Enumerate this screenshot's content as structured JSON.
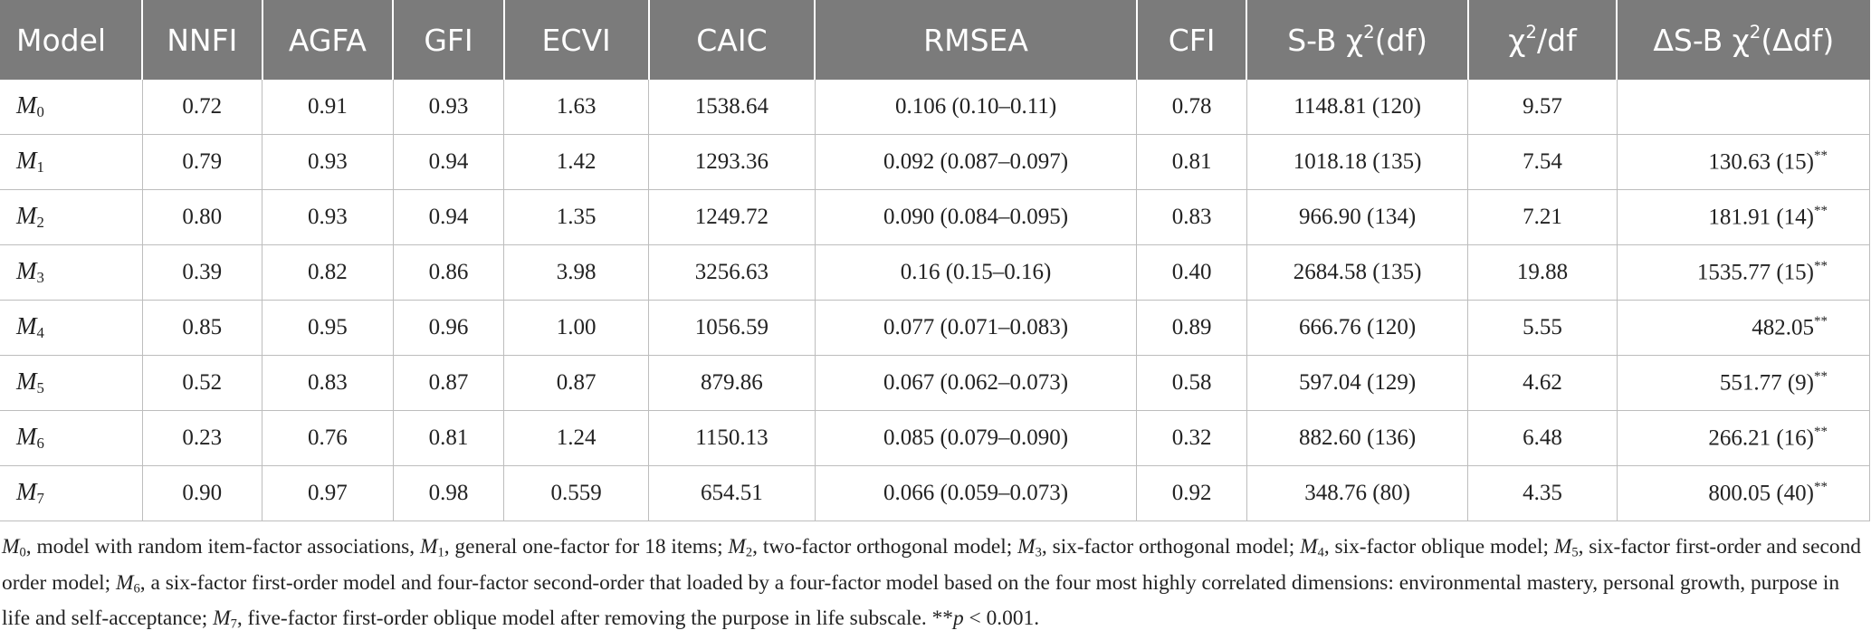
{
  "table": {
    "headers": [
      "Model",
      "NNFI",
      "AGFA",
      "GFI",
      "ECVI",
      "CAIC",
      "RMSEA",
      "CFI",
      "S-B χ",
      "χ",
      "ΔS-B χ"
    ],
    "header_sups": [
      "",
      "",
      "",
      "",
      "",
      "",
      "",
      "",
      "2",
      "2",
      ""
    ],
    "header_suffix": [
      "",
      "",
      "",
      "",
      "",
      "",
      "",
      "",
      "(df)",
      "/df",
      "(Δdf)"
    ],
    "rows": [
      {
        "model": "M",
        "sub": "0",
        "nnfi": "0.72",
        "agfa": "0.91",
        "gfi": "0.93",
        "ecvi": "1.63",
        "caic": "1538.64",
        "rmsea": "0.106 (0.10–0.11)",
        "cfi": "0.78",
        "sb": "1148.81 (120)",
        "chidf": "9.57",
        "dsb": "",
        "sig": ""
      },
      {
        "model": "M",
        "sub": "1",
        "nnfi": "0.79",
        "agfa": "0.93",
        "gfi": "0.94",
        "ecvi": "1.42",
        "caic": "1293.36",
        "rmsea": "0.092 (0.087–0.097)",
        "cfi": "0.81",
        "sb": "1018.18 (135)",
        "chidf": "7.54",
        "dsb": "130.63 (15)",
        "sig": "**"
      },
      {
        "model": "M",
        "sub": "2",
        "nnfi": "0.80",
        "agfa": "0.93",
        "gfi": "0.94",
        "ecvi": "1.35",
        "caic": "1249.72",
        "rmsea": "0.090 (0.084–0.095)",
        "cfi": "0.83",
        "sb": "966.90 (134)",
        "chidf": "7.21",
        "dsb": "181.91 (14)",
        "sig": "**"
      },
      {
        "model": "M",
        "sub": "3",
        "nnfi": "0.39",
        "agfa": "0.82",
        "gfi": "0.86",
        "ecvi": "3.98",
        "caic": "3256.63",
        "rmsea": "0.16 (0.15–0.16)",
        "cfi": "0.40",
        "sb": "2684.58 (135)",
        "chidf": "19.88",
        "dsb": "1535.77 (15)",
        "sig": "**"
      },
      {
        "model": "M",
        "sub": "4",
        "nnfi": "0.85",
        "agfa": "0.95",
        "gfi": "0.96",
        "ecvi": "1.00",
        "caic": "1056.59",
        "rmsea": "0.077 (0.071–0.083)",
        "cfi": "0.89",
        "sb": "666.76 (120)",
        "chidf": "5.55",
        "dsb": "482.05",
        "sig": "**"
      },
      {
        "model": "M",
        "sub": "5",
        "nnfi": "0.52",
        "agfa": "0.83",
        "gfi": "0.87",
        "ecvi": "0.87",
        "caic": "879.86",
        "rmsea": "0.067 (0.062–0.073)",
        "cfi": "0.58",
        "sb": "597.04 (129)",
        "chidf": "4.62",
        "dsb": "551.77 (9)",
        "sig": "**"
      },
      {
        "model": "M",
        "sub": "6",
        "nnfi": "0.23",
        "agfa": "0.76",
        "gfi": "0.81",
        "ecvi": "1.24",
        "caic": "1150.13",
        "rmsea": "0.085 (0.079–0.090)",
        "cfi": "0.32",
        "sb": "882.60 (136)",
        "chidf": "6.48",
        "dsb": "266.21 (16)",
        "sig": "**"
      },
      {
        "model": "M",
        "sub": "7",
        "nnfi": "0.90",
        "agfa": "0.97",
        "gfi": "0.98",
        "ecvi": "0.559",
        "caic": "654.51",
        "rmsea": "0.066 (0.059–0.073)",
        "cfi": "0.92",
        "sb": "348.76 (80)",
        "chidf": "4.35",
        "dsb": "800.05 (40)",
        "sig": "**"
      }
    ]
  },
  "footnote": [
    {
      "sub": "0",
      "text": ", model with random item-factor associations, "
    },
    {
      "sub": "1",
      "text": ", general one-factor for 18 items; "
    },
    {
      "sub": "2",
      "text": ", two-factor orthogonal model; "
    },
    {
      "sub": "3",
      "text": ", six-factor orthogonal model; "
    },
    {
      "sub": "4",
      "text": ", six-factor oblique model; "
    },
    {
      "sub": "5",
      "text": ", six-factor first-order and second order model; "
    },
    {
      "sub": "6",
      "text": ", a six-factor first-order model and four-factor second-order that loaded by a four-factor model based on the four most highly correlated dimensions: environmental mastery, personal growth, purpose in life and self-acceptance; "
    },
    {
      "sub": "7",
      "text": ", five-factor first-order oblique model after removing the purpose in life subscale. "
    }
  ],
  "footnote_sig_prefix": "**",
  "footnote_sig_p": "p",
  "footnote_sig_rest": " < 0.001.",
  "colors": {
    "header_bg": "#7b7b7b",
    "header_text": "#ffffff",
    "rule": "#bdbdbd"
  }
}
